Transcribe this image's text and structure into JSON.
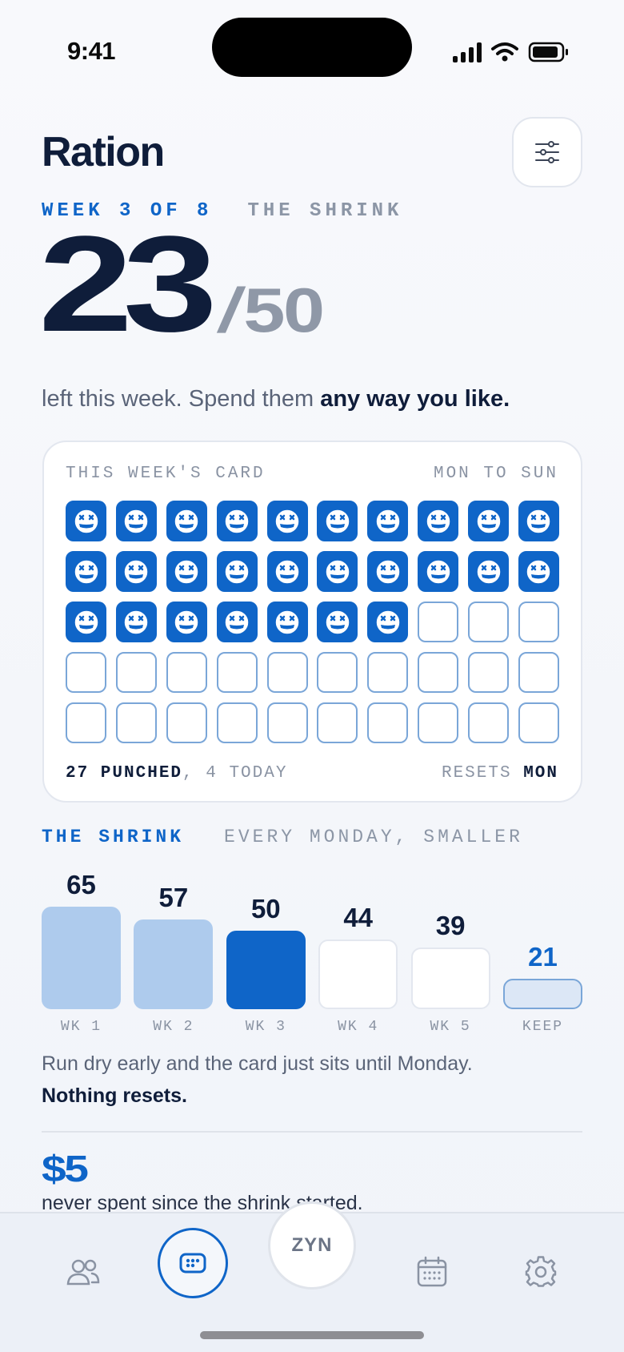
{
  "status": {
    "time": "9:41"
  },
  "header": {
    "title": "Ration"
  },
  "week": {
    "label": "WEEK 3 OF 8",
    "phase": "THE SHRINK"
  },
  "remaining": {
    "left": "23",
    "slash": "/",
    "total": "50"
  },
  "subtitle": {
    "text": "left this week. Spend them ",
    "bold": "any way you like."
  },
  "card": {
    "title": "THIS WEEK'S CARD",
    "range": "MON TO SUN",
    "punched_count": 27,
    "total_slots": 50,
    "footer_punched": "27 PUNCHED",
    "footer_sep": ", ",
    "footer_today": "4 TODAY",
    "footer_resets": "RESETS ",
    "footer_day": "MON"
  },
  "shrink": {
    "title": "THE SHRINK",
    "subtitle": "EVERY MONDAY, SMALLER",
    "bars": [
      {
        "value": "65",
        "label": "WK 1",
        "state": "past"
      },
      {
        "value": "57",
        "label": "WK 2",
        "state": "past"
      },
      {
        "value": "50",
        "label": "WK 3",
        "state": "current"
      },
      {
        "value": "44",
        "label": "WK 4",
        "state": "future"
      },
      {
        "value": "39",
        "label": "WK 5",
        "state": "future"
      },
      {
        "value": "21",
        "label": "KEEP",
        "state": "keep"
      }
    ]
  },
  "note": {
    "text": "Run dry early and the card just sits until Monday.",
    "bold": "Nothing resets."
  },
  "savings": {
    "amount": "$5",
    "text": "never spent since the shrink started."
  },
  "tabs": {
    "items": [
      "people-icon",
      "card-icon",
      "zyn",
      "calendar-icon",
      "gear-icon"
    ],
    "center_label": "ZYN"
  },
  "colors": {
    "accent": "#0f65c8",
    "navy": "#0f1d3a",
    "muted": "#8c96a6"
  }
}
